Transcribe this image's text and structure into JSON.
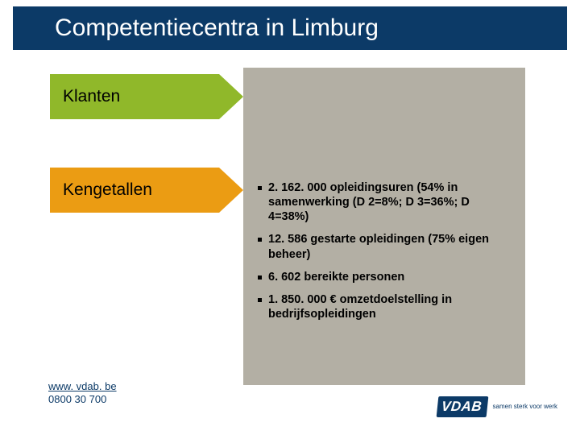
{
  "title": "Competentiecentra in Limburg",
  "tags": [
    {
      "label": "Klanten",
      "color": "#90b82a"
    },
    {
      "label": "Kengetallen",
      "color": "#eb9c13"
    }
  ],
  "bullets": [
    "2. 162. 000 opleidingsuren (54% in samenwerking (D 2=8%; D 3=36%; D 4=38%)",
    "12. 586 gestarte opleidingen (75% eigen beheer)",
    "6. 602 bereikte personen",
    "1. 850. 000 € omzetdoelstelling in bedrijfsopleidingen"
  ],
  "footer": {
    "url": "www. vdab. be",
    "phone": "0800 30 700"
  },
  "logo": {
    "text": "VDAB",
    "tagline": "samen sterk voor werk"
  },
  "colors": {
    "header_bg": "#0c3a67",
    "panel_bg": "#b3afa4",
    "page_bg": "#ffffff"
  }
}
